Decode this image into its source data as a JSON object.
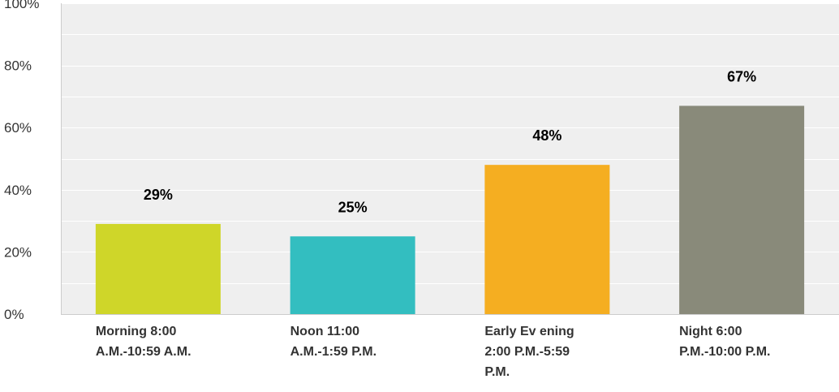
{
  "chart_data": {
    "type": "bar",
    "categories": [
      [
        "Morning 8:00",
        "A.M.-10:59 A.M."
      ],
      [
        "Noon 11:00",
        "A.M.-1:59 P.M."
      ],
      [
        "Early Ev ening",
        "2:00 P.M.-5:59",
        "P.M."
      ],
      [
        "Night 6:00",
        "P.M.-10:00 P.M."
      ]
    ],
    "values": [
      29,
      25,
      48,
      67
    ],
    "value_labels": [
      "29%",
      "25%",
      "48%",
      "67%"
    ],
    "colors": [
      "#cfd629",
      "#33bec0",
      "#f5ae21",
      "#898a7a"
    ],
    "ylim": [
      0,
      100
    ],
    "yticks": [
      0,
      20,
      40,
      60,
      80,
      100
    ],
    "ytick_labels": [
      "0%",
      "20%",
      "40%",
      "60%",
      "80%",
      "100%"
    ],
    "grid": true,
    "plot_background": "#efefef",
    "title": "",
    "xlabel": "",
    "ylabel": ""
  }
}
